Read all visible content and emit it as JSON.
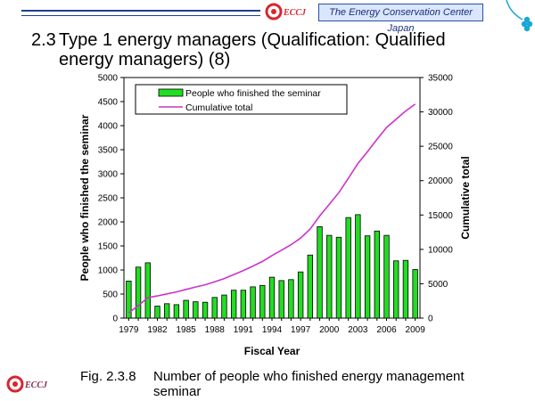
{
  "header": {
    "org_name": "The Energy Conservation Center Japan",
    "logo_text": "ECCJ"
  },
  "slide": {
    "title_number": "2.3",
    "title": "Type 1 energy managers (Qualification: Qualified energy managers) (8)"
  },
  "caption": {
    "number": "Fig. 2.3.8",
    "text": "Number of people who finished energy management seminar"
  },
  "footer": {
    "logo_text": "ECCJ"
  },
  "colors": {
    "bar": "#22dd22",
    "line": "#cc33cc",
    "header_accent": "#1f3f8f",
    "logo_red": "#d8262e"
  },
  "chart_data": {
    "type": "bar",
    "xlabel": "Fiscal Year",
    "ylabel": "People who finished the seminar",
    "y2label": "Cumulative total",
    "x": [
      1979,
      1980,
      1981,
      1982,
      1983,
      1984,
      1985,
      1986,
      1987,
      1988,
      1989,
      1990,
      1991,
      1992,
      1993,
      1994,
      1995,
      1996,
      1997,
      1998,
      1999,
      2000,
      2001,
      2002,
      2003,
      2004,
      2005,
      2006,
      2007,
      2008,
      2009
    ],
    "x_tick_labels": [
      "1979",
      "1982",
      "1985",
      "1988",
      "1991",
      "1994",
      "1997",
      "2000",
      "2003",
      "2006",
      "2009"
    ],
    "ylim": [
      0,
      5000
    ],
    "y_ticks": [
      0,
      500,
      1000,
      1500,
      2000,
      2500,
      3000,
      3500,
      4000,
      4500,
      5000
    ],
    "y2lim": [
      0,
      35000
    ],
    "y2_ticks": [
      0,
      5000,
      10000,
      15000,
      20000,
      25000,
      30000,
      35000
    ],
    "legend_position": "top",
    "grid": false,
    "series": [
      {
        "name": "People who finished the seminar",
        "type": "bar",
        "axis": "left",
        "values": [
          770,
          1060,
          1150,
          250,
          300,
          280,
          370,
          340,
          330,
          430,
          480,
          580,
          580,
          650,
          680,
          850,
          780,
          800,
          960,
          1310,
          1900,
          1720,
          1680,
          2090,
          2150,
          1710,
          1810,
          1720,
          1190,
          1200,
          1010
        ]
      },
      {
        "name": "Cumulative total",
        "type": "line",
        "axis": "right",
        "values": [
          770,
          1830,
          2980,
          3230,
          3530,
          3810,
          4180,
          4520,
          4850,
          5280,
          5760,
          6340,
          6920,
          7570,
          8250,
          9100,
          9880,
          10680,
          11640,
          12950,
          14850,
          16570,
          18250,
          20340,
          22490,
          24200,
          26010,
          27730,
          28920,
          30120,
          31130
        ]
      }
    ]
  }
}
